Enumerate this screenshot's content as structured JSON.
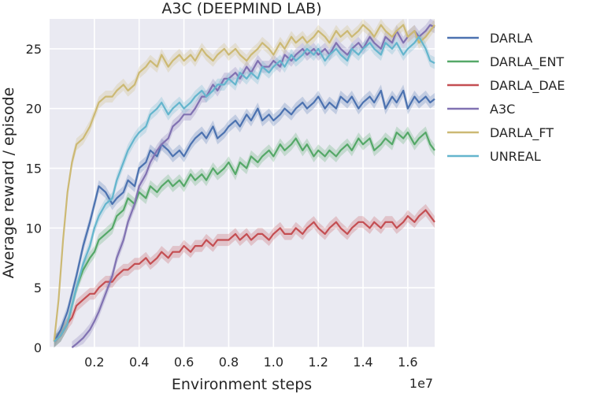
{
  "chart_data": {
    "type": "line",
    "title": "A3C (DEEPMIND LAB)",
    "xlabel": "Environment steps",
    "ylabel": "Average reward / episode",
    "x_multiplier_label": "1e7",
    "xlim": [
      0.0,
      1.72
    ],
    "ylim": [
      0,
      27.5
    ],
    "xticks": [
      0.2,
      0.4,
      0.6,
      0.8,
      1.0,
      1.2,
      1.4,
      1.6
    ],
    "xtick_labels": [
      "0.2",
      "0.4",
      "0.6",
      "0.8",
      "1.0",
      "1.2",
      "1.4",
      "1.6"
    ],
    "yticks": [
      0,
      5,
      10,
      15,
      20,
      25
    ],
    "ytick_labels": [
      "0",
      "5",
      "10",
      "15",
      "20",
      "25"
    ],
    "grid": true,
    "legend_position": "outside-right",
    "series": [
      {
        "name": "DARLA",
        "color": "#4c72b0",
        "x": [
          0.02,
          0.05,
          0.08,
          0.1,
          0.12,
          0.15,
          0.18,
          0.2,
          0.22,
          0.25,
          0.28,
          0.3,
          0.33,
          0.35,
          0.38,
          0.4,
          0.43,
          0.45,
          0.48,
          0.5,
          0.53,
          0.55,
          0.58,
          0.6,
          0.63,
          0.65,
          0.68,
          0.7,
          0.73,
          0.75,
          0.78,
          0.8,
          0.83,
          0.85,
          0.88,
          0.9,
          0.93,
          0.95,
          0.98,
          1.0,
          1.03,
          1.05,
          1.08,
          1.1,
          1.13,
          1.15,
          1.18,
          1.2,
          1.23,
          1.25,
          1.28,
          1.3,
          1.33,
          1.35,
          1.38,
          1.4,
          1.43,
          1.45,
          1.48,
          1.5,
          1.53,
          1.55,
          1.58,
          1.6,
          1.63,
          1.65,
          1.68,
          1.7,
          1.72
        ],
        "y": [
          0.5,
          1.5,
          3.0,
          4.5,
          6.0,
          8.5,
          10.5,
          12.0,
          13.5,
          13.0,
          12.0,
          12.5,
          13.0,
          14.0,
          13.5,
          15.0,
          15.5,
          16.5,
          16.0,
          17.0,
          16.5,
          16.0,
          16.5,
          16.0,
          17.0,
          17.5,
          18.0,
          17.5,
          18.5,
          17.5,
          18.0,
          18.5,
          19.0,
          18.5,
          19.5,
          19.0,
          20.0,
          19.0,
          19.5,
          19.0,
          19.5,
          20.0,
          19.5,
          20.0,
          20.5,
          20.0,
          20.5,
          21.0,
          20.0,
          20.5,
          20.0,
          21.0,
          20.5,
          21.0,
          20.0,
          20.5,
          21.0,
          20.5,
          21.5,
          20.0,
          21.0,
          20.5,
          21.5,
          20.0,
          21.0,
          20.5,
          21.0,
          20.5,
          20.8
        ]
      },
      {
        "name": "DARLA_ENT",
        "color": "#55a868",
        "x": [
          0.02,
          0.05,
          0.08,
          0.1,
          0.12,
          0.15,
          0.18,
          0.2,
          0.22,
          0.25,
          0.28,
          0.3,
          0.33,
          0.35,
          0.38,
          0.4,
          0.43,
          0.45,
          0.48,
          0.5,
          0.53,
          0.55,
          0.58,
          0.6,
          0.63,
          0.65,
          0.68,
          0.7,
          0.73,
          0.75,
          0.78,
          0.8,
          0.83,
          0.85,
          0.88,
          0.9,
          0.93,
          0.95,
          0.98,
          1.0,
          1.03,
          1.05,
          1.08,
          1.1,
          1.13,
          1.15,
          1.18,
          1.2,
          1.23,
          1.25,
          1.28,
          1.3,
          1.33,
          1.35,
          1.38,
          1.4,
          1.43,
          1.45,
          1.48,
          1.5,
          1.53,
          1.55,
          1.58,
          1.6,
          1.63,
          1.65,
          1.68,
          1.7,
          1.72
        ],
        "y": [
          0.5,
          1.0,
          2.0,
          3.5,
          5.0,
          6.5,
          7.5,
          8.0,
          9.0,
          9.5,
          10.0,
          11.0,
          11.5,
          12.5,
          12.0,
          13.0,
          12.5,
          13.5,
          13.0,
          13.5,
          14.0,
          13.5,
          14.0,
          13.5,
          14.5,
          14.0,
          14.5,
          14.0,
          15.0,
          14.5,
          15.0,
          15.5,
          14.5,
          15.5,
          15.0,
          16.0,
          15.5,
          16.0,
          16.5,
          16.0,
          17.0,
          16.5,
          17.0,
          17.5,
          16.5,
          17.0,
          16.0,
          16.5,
          16.0,
          16.5,
          16.0,
          16.5,
          17.0,
          16.5,
          17.5,
          17.0,
          17.5,
          16.5,
          17.0,
          17.5,
          17.0,
          18.0,
          17.5,
          18.0,
          17.0,
          17.5,
          18.0,
          17.0,
          16.5
        ]
      },
      {
        "name": "DARLA_DAE",
        "color": "#c44e52",
        "x": [
          0.02,
          0.05,
          0.08,
          0.1,
          0.12,
          0.15,
          0.18,
          0.2,
          0.22,
          0.25,
          0.28,
          0.3,
          0.33,
          0.35,
          0.38,
          0.4,
          0.43,
          0.45,
          0.48,
          0.5,
          0.53,
          0.55,
          0.58,
          0.6,
          0.63,
          0.65,
          0.68,
          0.7,
          0.73,
          0.75,
          0.78,
          0.8,
          0.83,
          0.85,
          0.88,
          0.9,
          0.93,
          0.95,
          0.98,
          1.0,
          1.03,
          1.05,
          1.08,
          1.1,
          1.13,
          1.15,
          1.18,
          1.2,
          1.23,
          1.25,
          1.28,
          1.3,
          1.33,
          1.35,
          1.38,
          1.4,
          1.43,
          1.45,
          1.48,
          1.5,
          1.53,
          1.55,
          1.58,
          1.6,
          1.63,
          1.65,
          1.68,
          1.7,
          1.72
        ],
        "y": [
          0.5,
          1.0,
          2.0,
          2.5,
          3.5,
          4.0,
          4.5,
          4.5,
          5.0,
          5.5,
          5.5,
          6.0,
          6.5,
          6.5,
          7.0,
          7.0,
          7.5,
          7.0,
          7.5,
          8.0,
          7.5,
          8.0,
          8.0,
          8.5,
          8.0,
          8.5,
          8.5,
          9.0,
          8.5,
          9.0,
          9.0,
          9.0,
          9.5,
          9.0,
          9.5,
          9.0,
          9.5,
          9.5,
          9.0,
          9.5,
          10.0,
          9.5,
          9.5,
          10.0,
          9.5,
          10.0,
          10.5,
          10.0,
          9.5,
          10.0,
          10.5,
          10.0,
          9.5,
          10.0,
          10.5,
          10.5,
          10.0,
          10.5,
          10.0,
          10.5,
          10.5,
          10.0,
          10.5,
          11.0,
          10.5,
          11.0,
          11.5,
          11.0,
          10.5
        ]
      },
      {
        "name": "A3C",
        "color": "#8172b2",
        "x": [
          0.1,
          0.12,
          0.15,
          0.18,
          0.2,
          0.22,
          0.25,
          0.28,
          0.3,
          0.33,
          0.35,
          0.38,
          0.4,
          0.43,
          0.45,
          0.48,
          0.5,
          0.53,
          0.55,
          0.58,
          0.6,
          0.63,
          0.65,
          0.68,
          0.7,
          0.73,
          0.75,
          0.78,
          0.8,
          0.83,
          0.85,
          0.88,
          0.9,
          0.93,
          0.95,
          0.98,
          1.0,
          1.03,
          1.05,
          1.08,
          1.1,
          1.13,
          1.15,
          1.18,
          1.2,
          1.23,
          1.25,
          1.28,
          1.3,
          1.33,
          1.35,
          1.38,
          1.4,
          1.43,
          1.45,
          1.48,
          1.5,
          1.53,
          1.55,
          1.58,
          1.6,
          1.63,
          1.65,
          1.68,
          1.7,
          1.72
        ],
        "y": [
          0.0,
          0.3,
          0.8,
          1.5,
          2.2,
          3.0,
          4.5,
          6.0,
          7.5,
          9.0,
          10.5,
          12.0,
          13.5,
          14.5,
          15.5,
          16.5,
          17.0,
          17.5,
          18.5,
          19.0,
          19.5,
          19.5,
          20.0,
          21.0,
          21.0,
          22.0,
          21.5,
          22.5,
          22.5,
          23.0,
          22.5,
          23.5,
          23.0,
          24.0,
          23.5,
          23.5,
          24.0,
          23.5,
          24.5,
          24.0,
          24.5,
          25.0,
          24.5,
          25.0,
          24.5,
          25.0,
          24.5,
          25.5,
          25.0,
          24.5,
          25.0,
          25.5,
          25.0,
          26.0,
          25.5,
          25.0,
          26.0,
          25.5,
          26.5,
          25.5,
          26.0,
          26.5,
          26.0,
          26.5,
          27.0,
          26.8
        ]
      },
      {
        "name": "DARLA_FT",
        "color": "#ccb974",
        "x": [
          0.02,
          0.04,
          0.06,
          0.08,
          0.1,
          0.12,
          0.15,
          0.18,
          0.2,
          0.22,
          0.25,
          0.28,
          0.3,
          0.33,
          0.35,
          0.38,
          0.4,
          0.43,
          0.45,
          0.48,
          0.5,
          0.53,
          0.55,
          0.58,
          0.6,
          0.63,
          0.65,
          0.68,
          0.7,
          0.73,
          0.75,
          0.78,
          0.8,
          0.83,
          0.85,
          0.88,
          0.9,
          0.93,
          0.95,
          0.98,
          1.0,
          1.03,
          1.05,
          1.08,
          1.1,
          1.13,
          1.15,
          1.18,
          1.2,
          1.23,
          1.25,
          1.28,
          1.3,
          1.33,
          1.35,
          1.38,
          1.4,
          1.43,
          1.45,
          1.48,
          1.5,
          1.53,
          1.55,
          1.58,
          1.6,
          1.63,
          1.65,
          1.68,
          1.7,
          1.72
        ],
        "y": [
          0.5,
          4.0,
          9.0,
          13.0,
          15.5,
          17.0,
          17.5,
          18.5,
          19.5,
          20.5,
          21.0,
          21.0,
          21.5,
          22.0,
          21.5,
          22.0,
          23.0,
          23.5,
          24.0,
          23.5,
          24.5,
          23.5,
          24.0,
          24.5,
          24.0,
          24.5,
          24.0,
          25.0,
          24.5,
          24.0,
          24.5,
          25.0,
          24.5,
          25.0,
          24.5,
          24.0,
          24.5,
          25.0,
          25.5,
          25.0,
          24.5,
          25.5,
          25.0,
          26.0,
          25.5,
          26.0,
          25.5,
          26.0,
          26.5,
          26.0,
          25.5,
          26.5,
          26.0,
          26.5,
          26.0,
          26.5,
          27.0,
          26.5,
          26.0,
          27.0,
          26.5,
          26.0,
          26.5,
          27.0,
          26.0,
          26.5,
          25.5,
          26.0,
          26.5,
          27.0
        ]
      },
      {
        "name": "UNREAL",
        "color": "#64b5cd",
        "x": [
          0.02,
          0.05,
          0.08,
          0.1,
          0.12,
          0.15,
          0.18,
          0.2,
          0.22,
          0.25,
          0.28,
          0.3,
          0.33,
          0.35,
          0.38,
          0.4,
          0.43,
          0.45,
          0.48,
          0.5,
          0.53,
          0.55,
          0.58,
          0.6,
          0.63,
          0.65,
          0.68,
          0.7,
          0.73,
          0.75,
          0.78,
          0.8,
          0.83,
          0.85,
          0.88,
          0.9,
          0.93,
          0.95,
          0.98,
          1.0,
          1.03,
          1.05,
          1.08,
          1.1,
          1.13,
          1.15,
          1.18,
          1.2,
          1.23,
          1.25,
          1.28,
          1.3,
          1.33,
          1.35,
          1.38,
          1.4,
          1.43,
          1.45,
          1.48,
          1.5,
          1.53,
          1.55,
          1.58,
          1.6,
          1.63,
          1.65,
          1.68,
          1.7,
          1.72
        ],
        "y": [
          0.5,
          1.0,
          2.0,
          3.5,
          5.0,
          7.0,
          8.5,
          10.0,
          11.0,
          12.0,
          12.5,
          14.0,
          15.5,
          16.5,
          17.5,
          18.0,
          18.5,
          19.5,
          20.0,
          20.5,
          19.5,
          20.0,
          20.5,
          20.0,
          20.5,
          21.0,
          21.5,
          21.0,
          21.5,
          22.0,
          22.0,
          22.5,
          22.0,
          23.0,
          22.5,
          23.0,
          22.5,
          23.5,
          23.0,
          23.5,
          24.0,
          23.5,
          24.5,
          24.0,
          24.5,
          25.0,
          24.5,
          25.0,
          24.0,
          24.5,
          25.0,
          24.5,
          24.0,
          25.0,
          24.5,
          25.0,
          25.5,
          25.0,
          24.5,
          25.5,
          25.0,
          25.5,
          24.5,
          25.0,
          25.5,
          26.0,
          25.0,
          24.0,
          23.8
        ]
      }
    ]
  }
}
